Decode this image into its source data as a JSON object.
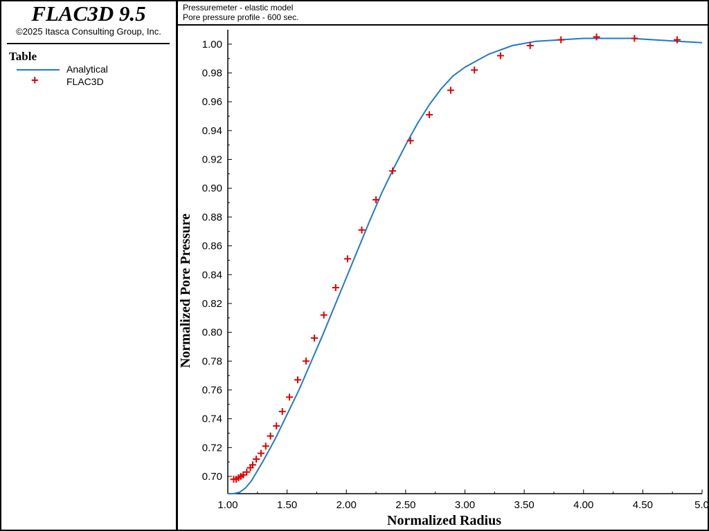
{
  "app": {
    "title": "FLAC3D 9.5",
    "copyright": "©2025 Itasca Consulting Group, Inc."
  },
  "legend": {
    "title": "Table",
    "items": [
      {
        "label": "Analytical",
        "color": "#1f77d0",
        "marker": "line"
      },
      {
        "label": "FLAC3D",
        "color": "#e00000",
        "marker": "cross"
      }
    ]
  },
  "plot": {
    "title_line1": "Pressuremeter - elastic model",
    "title_line2": "Pore pressure profile - 600 sec."
  },
  "chart_data": {
    "type": "line",
    "xlabel": "Normalized Radius",
    "ylabel": "Normalized Pore Pressure",
    "xlim": [
      1.0,
      5.0
    ],
    "ylim": [
      0.688,
      1.01
    ],
    "x_ticks": [
      1.0,
      1.5,
      2.0,
      2.5,
      3.0,
      3.5,
      4.0,
      4.5,
      5.0
    ],
    "x_tick_labels": [
      "1.00",
      "1.50",
      "2.00",
      "2.50",
      "3.00",
      "3.50",
      "4.00",
      "4.50",
      "5.0"
    ],
    "y_ticks": [
      0.7,
      0.72,
      0.74,
      0.76,
      0.78,
      0.8,
      0.82,
      0.84,
      0.86,
      0.88,
      0.9,
      0.92,
      0.94,
      0.96,
      0.98,
      1.0
    ],
    "y_tick_labels": [
      "0.70",
      "0.72",
      "0.74",
      "0.76",
      "0.78",
      "0.80",
      "0.82",
      "0.84",
      "0.86",
      "0.88",
      "0.90",
      "0.92",
      "0.94",
      "0.96",
      "0.98",
      "1.00"
    ],
    "grid": false,
    "series": [
      {
        "name": "Analytical",
        "kind": "line",
        "color": "#1f77d0",
        "x": [
          1.0,
          1.05,
          1.1,
          1.15,
          1.2,
          1.3,
          1.4,
          1.5,
          1.6,
          1.7,
          1.8,
          1.9,
          2.0,
          2.1,
          2.2,
          2.3,
          2.4,
          2.5,
          2.6,
          2.7,
          2.8,
          2.9,
          3.0,
          3.2,
          3.4,
          3.6,
          3.8,
          4.0,
          4.2,
          4.4,
          4.6,
          4.8,
          5.0
        ],
        "y": [
          0.688,
          0.688,
          0.689,
          0.692,
          0.697,
          0.711,
          0.726,
          0.743,
          0.76,
          0.779,
          0.798,
          0.818,
          0.838,
          0.858,
          0.878,
          0.897,
          0.914,
          0.93,
          0.945,
          0.958,
          0.969,
          0.978,
          0.984,
          0.993,
          0.999,
          1.002,
          1.003,
          1.004,
          1.004,
          1.004,
          1.003,
          1.002,
          1.001
        ]
      },
      {
        "name": "FLAC3D",
        "kind": "scatter",
        "marker": "+",
        "color": "#e00000",
        "x": [
          1.05,
          1.07,
          1.09,
          1.11,
          1.13,
          1.16,
          1.19,
          1.21,
          1.24,
          1.28,
          1.32,
          1.36,
          1.41,
          1.46,
          1.52,
          1.59,
          1.66,
          1.73,
          1.81,
          1.91,
          2.01,
          2.13,
          2.25,
          2.39,
          2.54,
          2.7,
          2.88,
          3.08,
          3.3,
          3.55,
          3.81,
          4.11,
          4.43,
          4.79
        ],
        "y": [
          0.698,
          0.698,
          0.699,
          0.7,
          0.701,
          0.703,
          0.706,
          0.708,
          0.712,
          0.716,
          0.721,
          0.728,
          0.735,
          0.745,
          0.755,
          0.767,
          0.78,
          0.796,
          0.812,
          0.831,
          0.851,
          0.871,
          0.892,
          0.912,
          0.933,
          0.951,
          0.968,
          0.982,
          0.992,
          0.999,
          1.003,
          1.005,
          1.004,
          1.003
        ]
      }
    ]
  }
}
